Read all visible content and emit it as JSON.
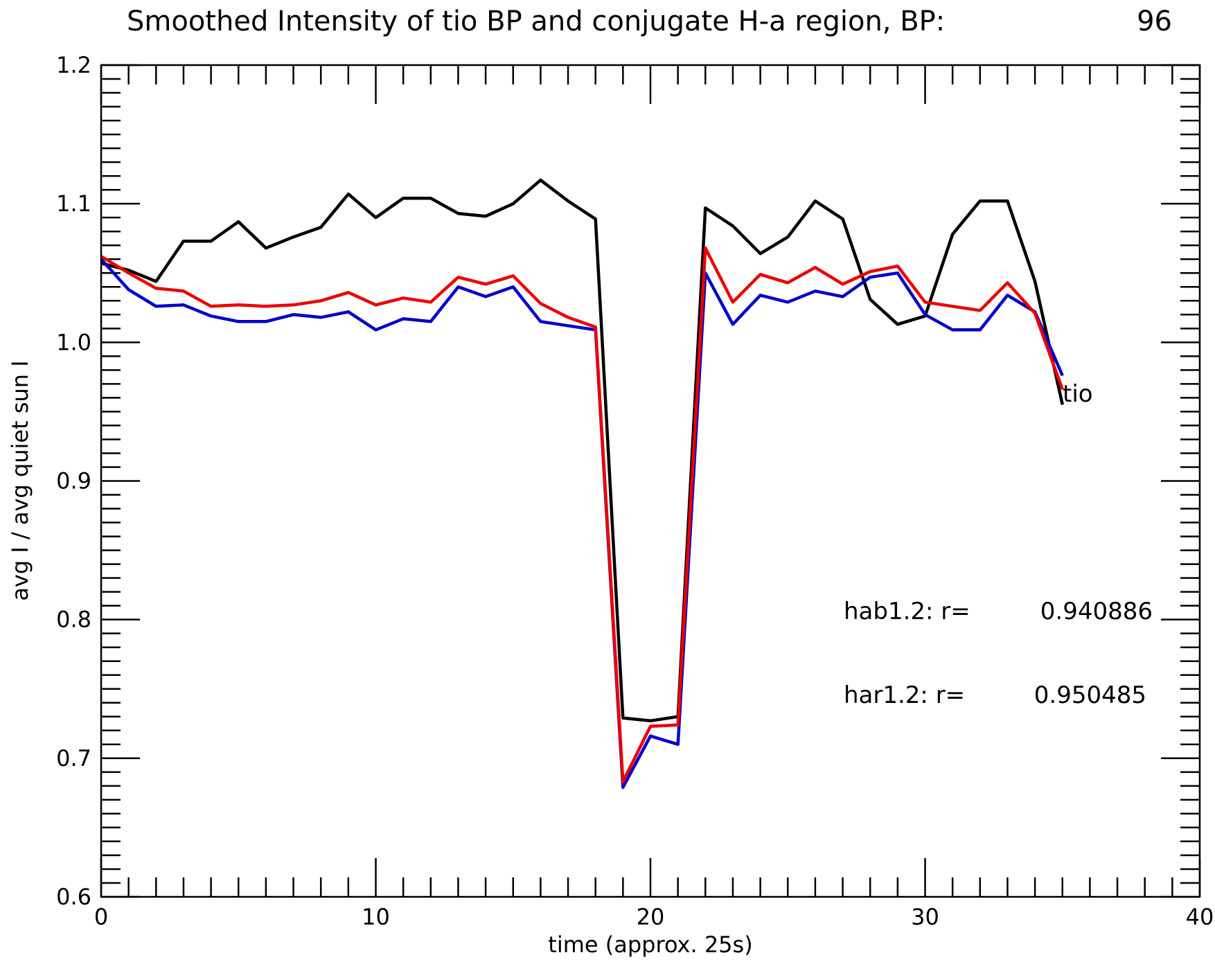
{
  "chart_data": {
    "type": "line",
    "title": "Smoothed Intensity of tio BP and conjugate H-a region, BP:",
    "title_value": "96",
    "xlabel": "time (approx. 25s)",
    "ylabel": "avg I / avg quiet sun I",
    "xlim": [
      0,
      40
    ],
    "ylim": [
      0.6,
      1.2
    ],
    "xticks": [
      0,
      10,
      20,
      30,
      40
    ],
    "xtick_labels": [
      "0",
      "10",
      "20",
      "30",
      "40"
    ],
    "yticks": [
      0.6,
      0.7,
      0.8,
      0.9,
      1.0,
      1.1,
      1.2
    ],
    "ytick_labels": [
      "0.6",
      "0.7",
      "0.8",
      "0.9",
      "1.0",
      "1.1",
      "1.2"
    ],
    "grid": false,
    "x": [
      0,
      1,
      2,
      3,
      4,
      5,
      6,
      7,
      8,
      9,
      10,
      11,
      12,
      13,
      14,
      15,
      16,
      17,
      18,
      19,
      20,
      21,
      22,
      23,
      24,
      25,
      26,
      27,
      28,
      29,
      30,
      31,
      32,
      33,
      34,
      35
    ],
    "series": [
      {
        "key": "tio",
        "color": "#000000",
        "values": [
          1.057,
          1.052,
          1.044,
          1.073,
          1.073,
          1.087,
          1.068,
          1.076,
          1.083,
          1.107,
          1.09,
          1.104,
          1.104,
          1.093,
          1.091,
          1.1,
          1.117,
          1.102,
          1.089,
          0.729,
          0.727,
          0.73,
          1.097,
          1.084,
          1.064,
          1.076,
          1.102,
          1.089,
          1.031,
          1.013,
          1.019,
          1.078,
          1.102,
          1.102,
          1.044,
          0.955
        ]
      },
      {
        "key": "hab1.2",
        "color": "#0000cc",
        "values": [
          1.06,
          1.038,
          1.026,
          1.027,
          1.019,
          1.015,
          1.015,
          1.02,
          1.018,
          1.022,
          1.009,
          1.017,
          1.015,
          1.04,
          1.033,
          1.04,
          1.015,
          1.012,
          1.009,
          0.679,
          0.716,
          0.71,
          1.05,
          1.013,
          1.034,
          1.029,
          1.037,
          1.033,
          1.047,
          1.05,
          1.02,
          1.009,
          1.009,
          1.034,
          1.022,
          0.976
        ]
      },
      {
        "key": "har1.2",
        "color": "#ee0000",
        "values": [
          1.062,
          1.05,
          1.039,
          1.037,
          1.026,
          1.027,
          1.026,
          1.027,
          1.03,
          1.036,
          1.027,
          1.032,
          1.029,
          1.047,
          1.042,
          1.048,
          1.028,
          1.018,
          1.011,
          0.683,
          0.723,
          0.724,
          1.068,
          1.029,
          1.049,
          1.043,
          1.054,
          1.042,
          1.051,
          1.055,
          1.029,
          1.026,
          1.023,
          1.043,
          1.021,
          0.966
        ]
      }
    ],
    "line_label": "tio",
    "annotations": [
      {
        "label": "hab1.2: r=",
        "value": "0.940886"
      },
      {
        "label": "har1.2: r=",
        "value": "0.950485"
      }
    ]
  }
}
